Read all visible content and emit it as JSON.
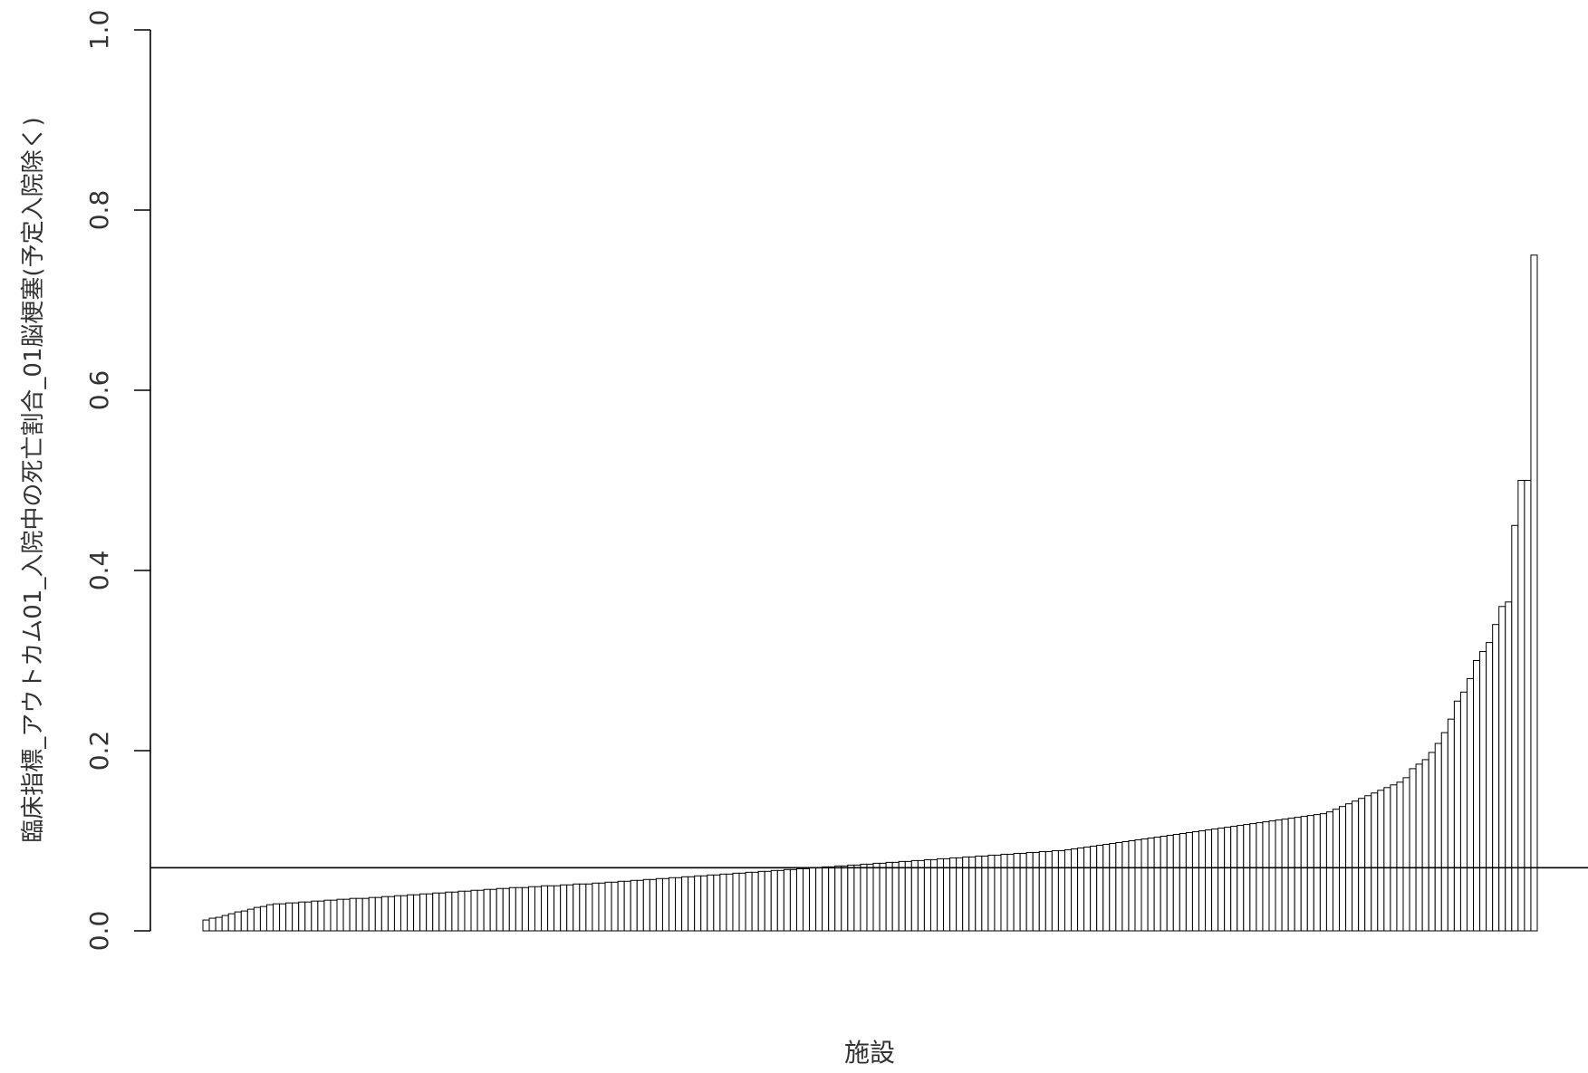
{
  "chart_data": {
    "type": "bar",
    "ylabel": "臨床指標_アウトカム01_入院中の死亡割合_01脳梗塞(予定入院除く)",
    "xlabel": "施設",
    "ylim": [
      0,
      1.0
    ],
    "yticks": [
      "0.0",
      "0.2",
      "0.4",
      "0.6",
      "0.8",
      "1.0"
    ],
    "reference_line": 0.07,
    "sorted": "ascending",
    "bar_fill": "#ffffff",
    "bar_stroke": "#000000",
    "values": [
      0.012,
      0.014,
      0.015,
      0.017,
      0.019,
      0.021,
      0.022,
      0.024,
      0.026,
      0.027,
      0.029,
      0.03,
      0.03,
      0.031,
      0.031,
      0.032,
      0.032,
      0.033,
      0.033,
      0.034,
      0.034,
      0.035,
      0.035,
      0.036,
      0.036,
      0.036,
      0.037,
      0.037,
      0.038,
      0.038,
      0.039,
      0.039,
      0.04,
      0.04,
      0.041,
      0.041,
      0.042,
      0.042,
      0.043,
      0.043,
      0.044,
      0.044,
      0.045,
      0.045,
      0.046,
      0.046,
      0.047,
      0.047,
      0.048,
      0.048,
      0.048,
      0.049,
      0.049,
      0.05,
      0.05,
      0.05,
      0.051,
      0.051,
      0.052,
      0.052,
      0.052,
      0.053,
      0.053,
      0.054,
      0.054,
      0.055,
      0.055,
      0.056,
      0.056,
      0.057,
      0.057,
      0.058,
      0.058,
      0.059,
      0.059,
      0.06,
      0.06,
      0.061,
      0.061,
      0.062,
      0.062,
      0.063,
      0.063,
      0.064,
      0.064,
      0.065,
      0.065,
      0.066,
      0.066,
      0.067,
      0.067,
      0.068,
      0.068,
      0.069,
      0.069,
      0.07,
      0.07,
      0.071,
      0.071,
      0.072,
      0.072,
      0.073,
      0.073,
      0.074,
      0.074,
      0.075,
      0.075,
      0.076,
      0.076,
      0.077,
      0.077,
      0.078,
      0.078,
      0.079,
      0.079,
      0.08,
      0.08,
      0.081,
      0.081,
      0.082,
      0.082,
      0.083,
      0.083,
      0.084,
      0.084,
      0.085,
      0.085,
      0.086,
      0.086,
      0.087,
      0.087,
      0.088,
      0.088,
      0.089,
      0.089,
      0.09,
      0.091,
      0.092,
      0.093,
      0.094,
      0.095,
      0.096,
      0.097,
      0.098,
      0.099,
      0.1,
      0.101,
      0.102,
      0.103,
      0.104,
      0.105,
      0.106,
      0.107,
      0.108,
      0.109,
      0.11,
      0.111,
      0.112,
      0.113,
      0.114,
      0.115,
      0.116,
      0.117,
      0.118,
      0.119,
      0.12,
      0.121,
      0.122,
      0.123,
      0.124,
      0.125,
      0.126,
      0.127,
      0.128,
      0.129,
      0.13,
      0.132,
      0.135,
      0.138,
      0.141,
      0.144,
      0.147,
      0.15,
      0.153,
      0.156,
      0.159,
      0.162,
      0.165,
      0.17,
      0.18,
      0.185,
      0.19,
      0.198,
      0.208,
      0.22,
      0.235,
      0.255,
      0.265,
      0.28,
      0.3,
      0.31,
      0.32,
      0.34,
      0.36,
      0.365,
      0.45,
      0.5,
      0.5,
      0.75
    ]
  }
}
